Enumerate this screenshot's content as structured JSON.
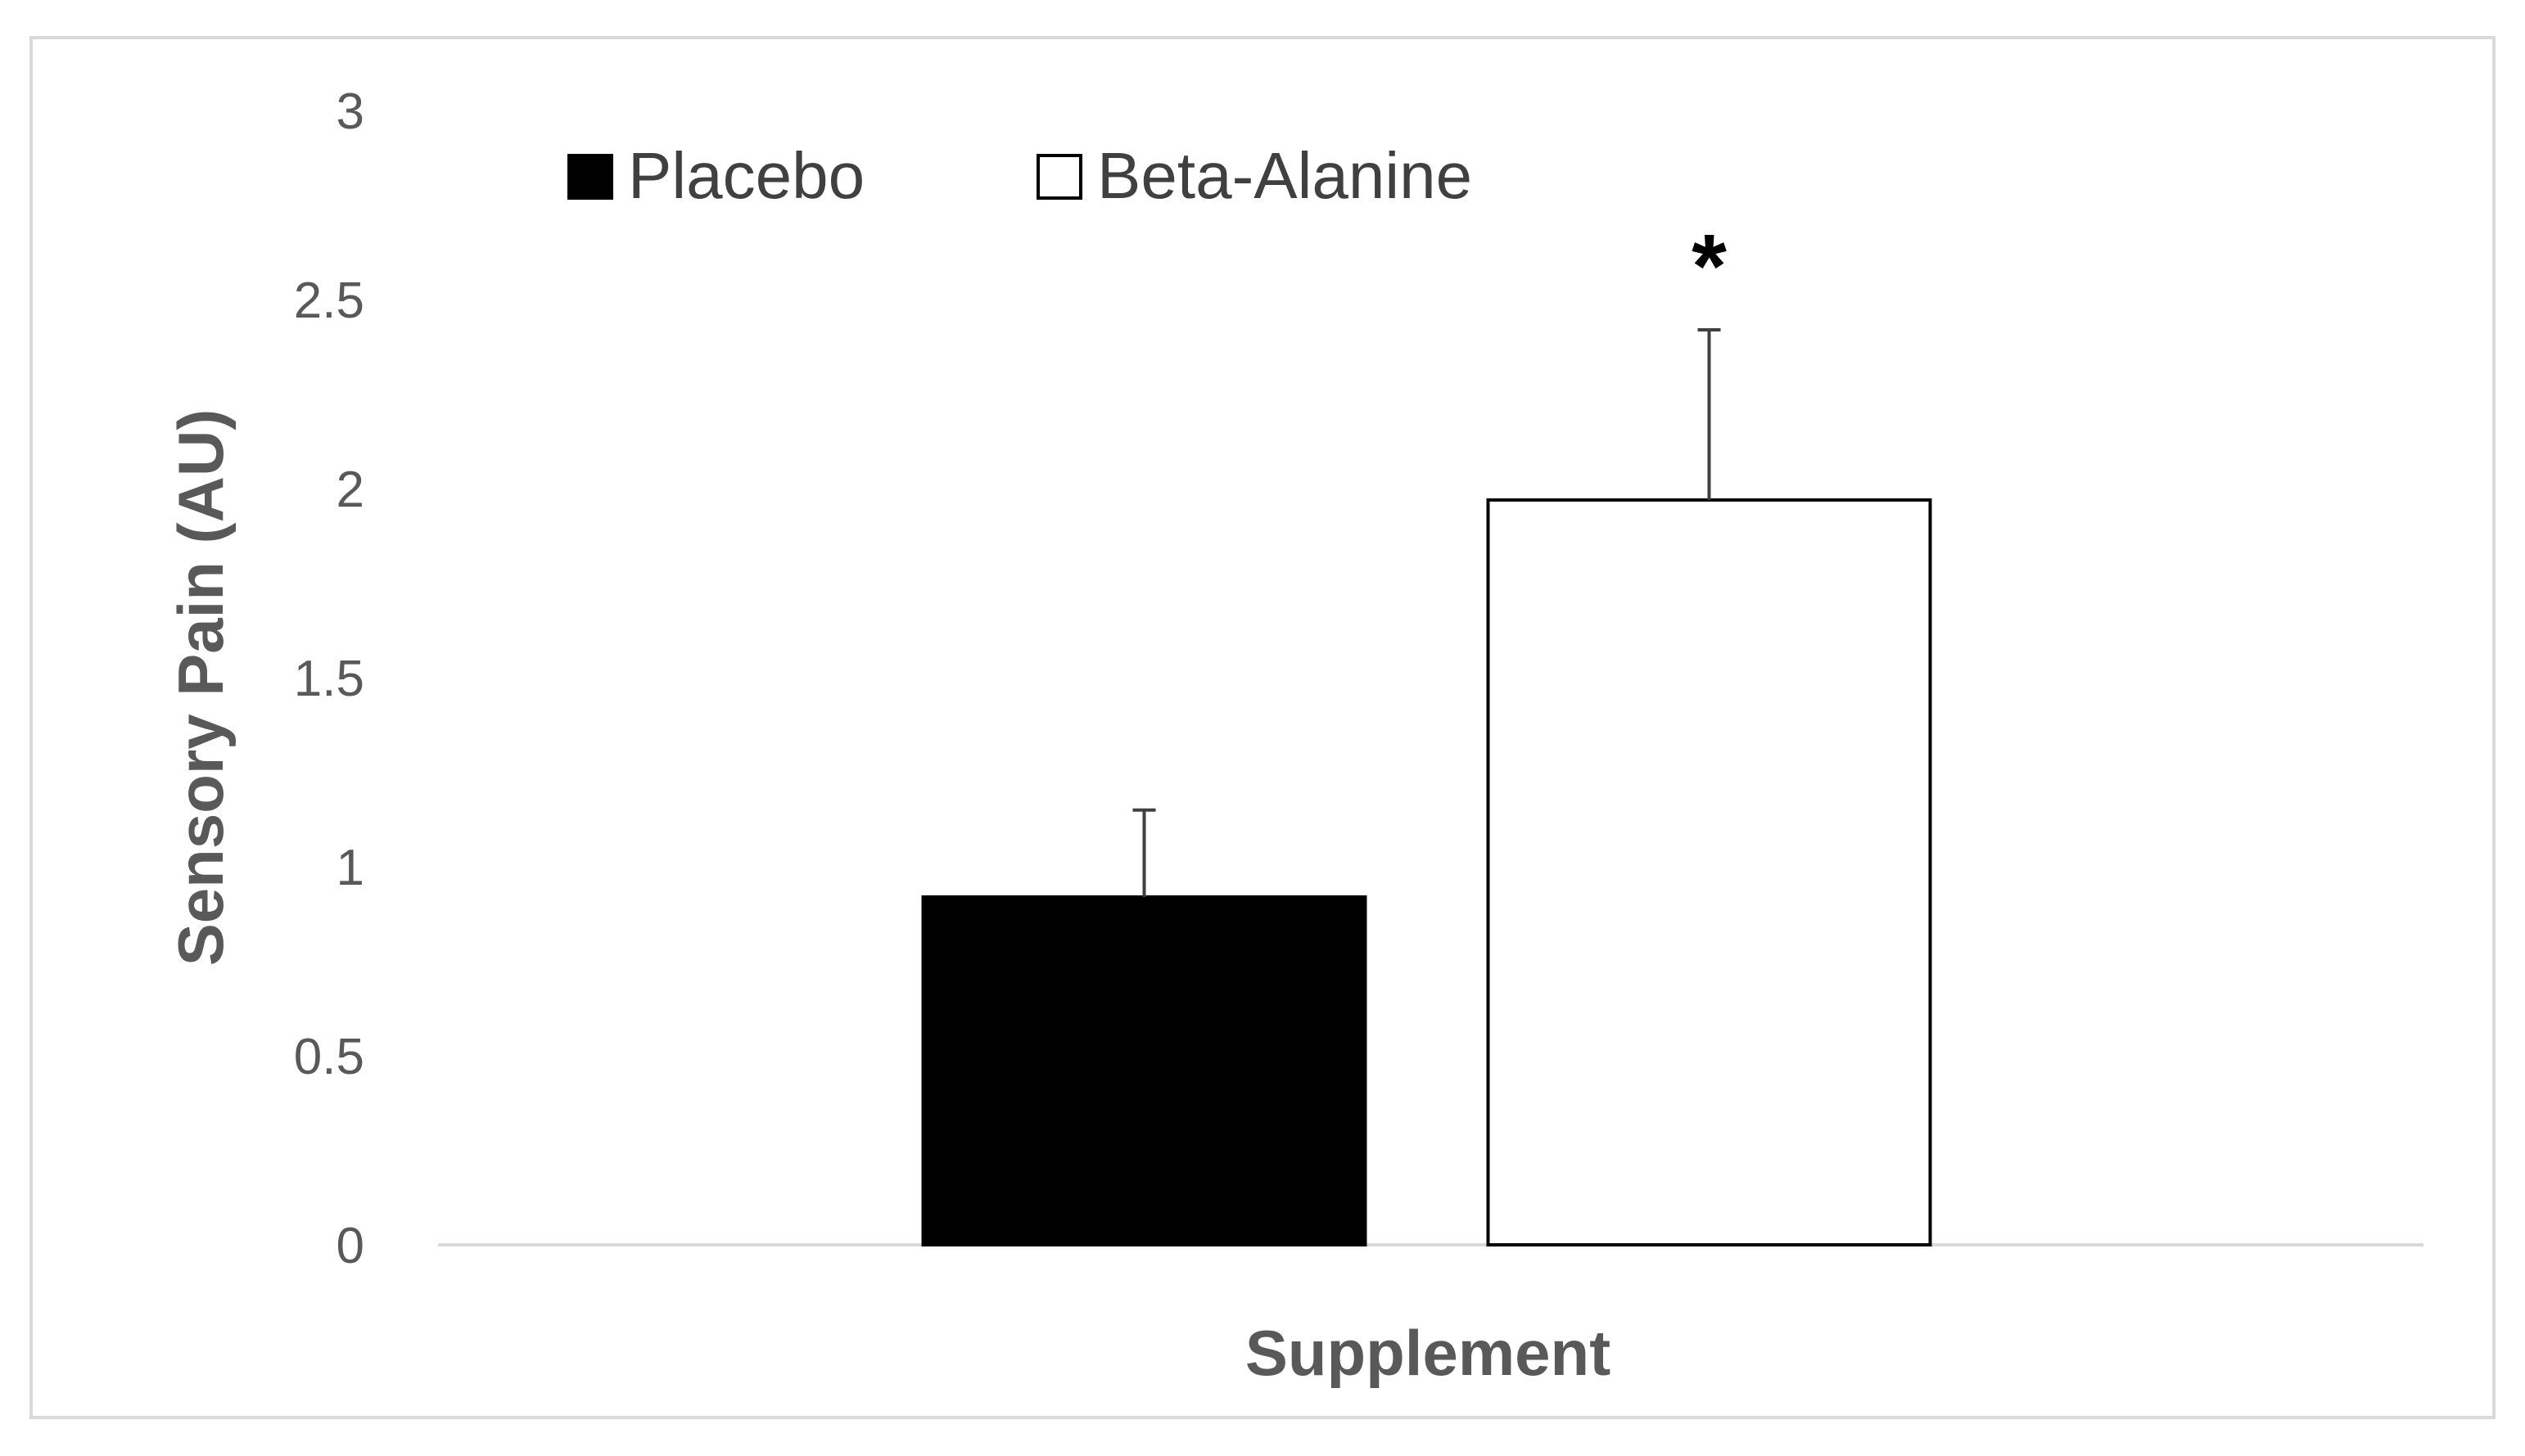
{
  "chart_data": {
    "type": "bar",
    "categories": [
      "Supplement"
    ],
    "series": [
      {
        "name": "Placebo",
        "values": [
          0.92
        ],
        "error": [
          0.23
        ],
        "color": "#000000"
      },
      {
        "name": "Beta-Alanine",
        "values": [
          1.97
        ],
        "error": [
          0.45
        ],
        "color": "#ffffff"
      }
    ],
    "xlabel": "Supplement",
    "ylabel": "Sensory Pain (AU)",
    "ylim": [
      0,
      3
    ],
    "yticks": [
      "0",
      "0.5",
      "1",
      "1.5",
      "2",
      "2.5",
      "3"
    ],
    "grid": false,
    "legend_position": "top-left",
    "annotations": [
      {
        "series": "Beta-Alanine",
        "text": "*"
      }
    ]
  }
}
